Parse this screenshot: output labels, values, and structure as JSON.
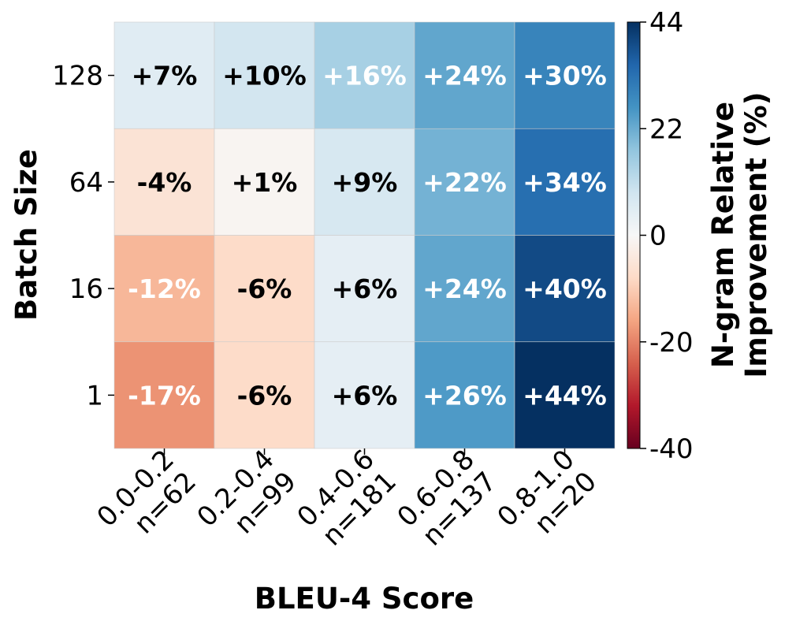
{
  "chart_data": {
    "type": "heatmap",
    "xlabel": "BLEU-4 Score",
    "ylabel": "Batch Size",
    "x_categories": [
      "0.0-0.2",
      "0.2-0.4",
      "0.4-0.6",
      "0.6-0.8",
      "0.8-1.0"
    ],
    "x_counts": [
      "n=62",
      "n=99",
      "n=181",
      "n=137",
      "n=20"
    ],
    "y_categories": [
      "128",
      "64",
      "16",
      "1"
    ],
    "values": [
      [
        7,
        10,
        16,
        24,
        30
      ],
      [
        -4,
        1,
        9,
        22,
        34
      ],
      [
        -12,
        -6,
        6,
        24,
        40
      ],
      [
        -17,
        -6,
        6,
        26,
        44
      ]
    ],
    "cell_labels": [
      [
        "+7%",
        "+10%",
        "+16%",
        "+24%",
        "+30%"
      ],
      [
        "-4%",
        "+1%",
        "+9%",
        "+22%",
        "+34%"
      ],
      [
        "-12%",
        "-6%",
        "+6%",
        "+24%",
        "+40%"
      ],
      [
        "-17%",
        "-6%",
        "+6%",
        "+26%",
        "+44%"
      ]
    ],
    "colorbar": {
      "label_lines": [
        "N-gram Relative",
        "Improvement (%)"
      ],
      "ticks": [
        "44",
        "22",
        "0",
        "-20",
        "-40"
      ],
      "range": [
        -40,
        44
      ],
      "colormap": "RdBu"
    },
    "grid": false,
    "legend": "none"
  }
}
